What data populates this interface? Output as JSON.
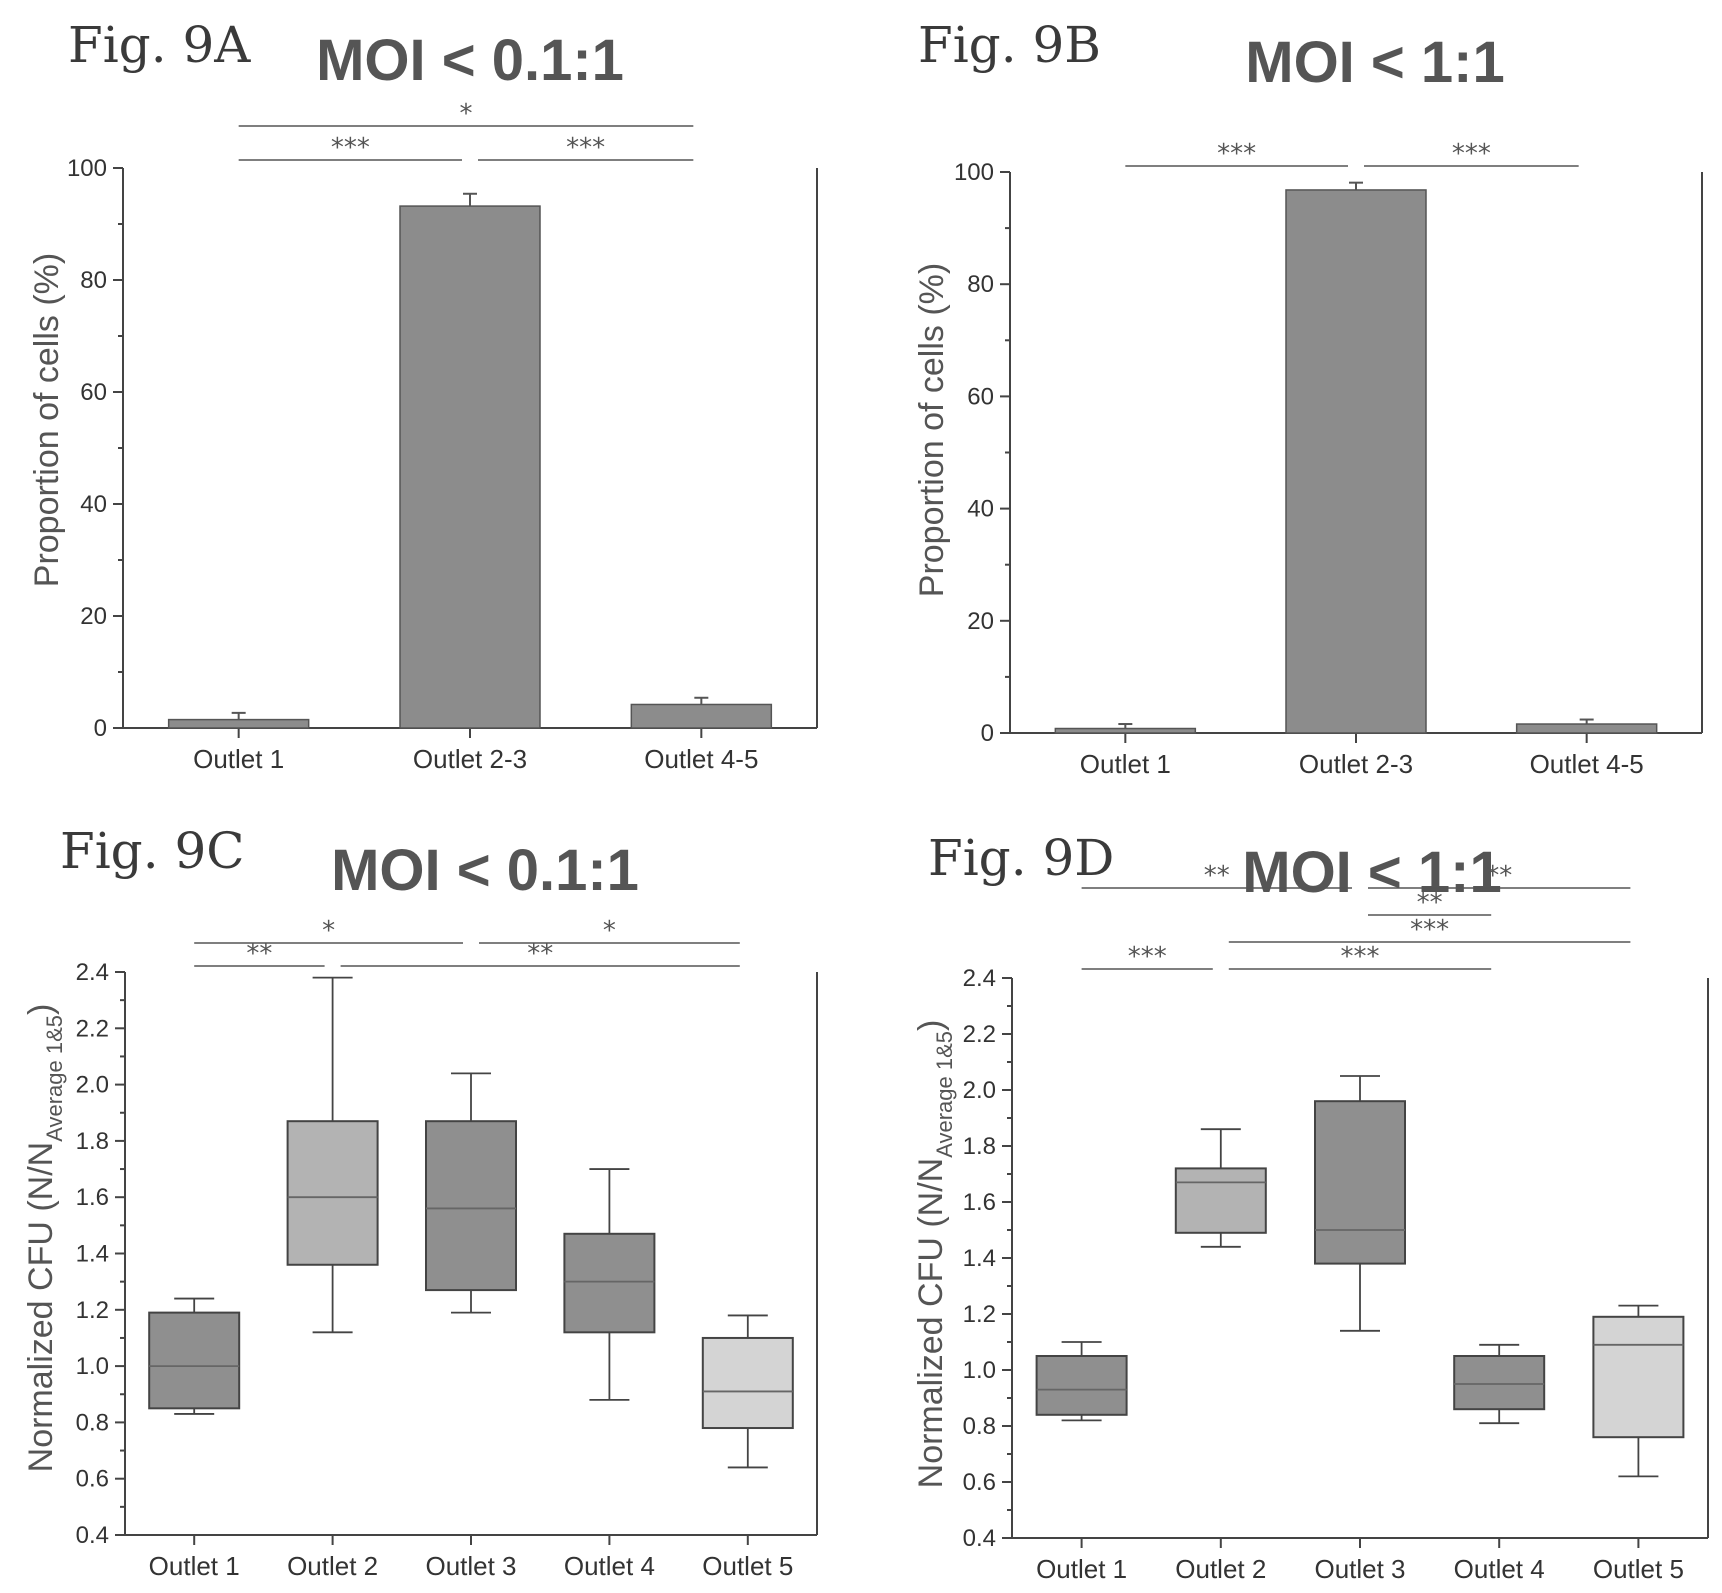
{
  "chart_data": [
    {
      "type": "bar",
      "figure_label": "Fig. 9A",
      "title": "MOI < 0.1:1",
      "ylabel": "Proportion of cells (%)",
      "ylim": [
        0,
        100
      ],
      "yticks": [
        0,
        20,
        40,
        60,
        80,
        100
      ],
      "categories": [
        "Outlet 1",
        "Outlet 2-3",
        "Outlet 4-5"
      ],
      "values": [
        1.5,
        93.2,
        4.2
      ],
      "errors": [
        1.2,
        2.2,
        1.2
      ],
      "significance": [
        {
          "from": 0,
          "to": 2,
          "label": "*",
          "level": 2
        },
        {
          "from": 0,
          "to": 1,
          "label": "***",
          "level": 1
        },
        {
          "from": 1,
          "to": 2,
          "label": "***",
          "level": 1
        }
      ]
    },
    {
      "type": "bar",
      "figure_label": "Fig. 9B",
      "title": "MOI < 1:1",
      "ylabel": "Proportion of cells (%)",
      "ylim": [
        0,
        100
      ],
      "yticks": [
        0,
        20,
        40,
        60,
        80,
        100
      ],
      "categories": [
        "Outlet 1",
        "Outlet 2-3",
        "Outlet 4-5"
      ],
      "values": [
        0.8,
        96.8,
        1.6
      ],
      "errors": [
        0.8,
        1.3,
        0.8
      ],
      "significance": [
        {
          "from": 0,
          "to": 1,
          "label": "***",
          "level": 1
        },
        {
          "from": 1,
          "to": 2,
          "label": "***",
          "level": 1
        }
      ]
    },
    {
      "type": "box",
      "figure_label": "Fig. 9C",
      "title": "MOI < 0.1:1",
      "ylabel_main": "Normalized CFU (N/N",
      "ylabel_sub": "Average 1&5",
      "ylabel_end": ")",
      "ylim": [
        0.4,
        2.4
      ],
      "yticks": [
        "0.4",
        "0.6",
        "0.8",
        "1.0",
        "1.2",
        "1.4",
        "1.6",
        "1.8",
        "2.0",
        "2.2",
        "2.4"
      ],
      "categories": [
        "Outlet 1",
        "Outlet 2",
        "Outlet 3",
        "Outlet 4",
        "Outlet 5"
      ],
      "boxes": [
        {
          "min": 0.83,
          "q1": 0.85,
          "median": 1.0,
          "q3": 1.19,
          "max": 1.24,
          "shade": "dark"
        },
        {
          "min": 1.12,
          "q1": 1.36,
          "median": 1.6,
          "q3": 1.87,
          "max": 2.38,
          "shade": "mid"
        },
        {
          "min": 1.19,
          "q1": 1.27,
          "median": 1.56,
          "q3": 1.87,
          "max": 2.04,
          "shade": "dark"
        },
        {
          "min": 0.88,
          "q1": 1.12,
          "median": 1.3,
          "q3": 1.47,
          "max": 1.7,
          "shade": "dark"
        },
        {
          "min": 0.64,
          "q1": 0.78,
          "median": 0.91,
          "q3": 1.1,
          "max": 1.18,
          "shade": "light"
        }
      ],
      "significance": [
        {
          "from": 0,
          "to": 2,
          "label": "*",
          "level": 2
        },
        {
          "from": 2,
          "to": 4,
          "label": "*",
          "level": 2
        },
        {
          "from": 0,
          "to": 1,
          "label": "**",
          "level": 1
        },
        {
          "from": 1,
          "to": 4,
          "label": "**",
          "level": 1
        }
      ]
    },
    {
      "type": "box",
      "figure_label": "Fig. 9D",
      "title": "MOI < 1:1",
      "ylabel_main": "Normalized CFU (N/N",
      "ylabel_sub": "Average 1&5",
      "ylabel_end": ")",
      "ylim": [
        0.4,
        2.4
      ],
      "yticks": [
        "0.4",
        "0.6",
        "0.8",
        "1.0",
        "1.2",
        "1.4",
        "1.6",
        "1.8",
        "2.0",
        "2.2",
        "2.4"
      ],
      "categories": [
        "Outlet 1",
        "Outlet 2",
        "Outlet 3",
        "Outlet 4",
        "Outlet 5"
      ],
      "boxes": [
        {
          "min": 0.82,
          "q1": 0.84,
          "median": 0.93,
          "q3": 1.05,
          "max": 1.1,
          "shade": "dark"
        },
        {
          "min": 1.44,
          "q1": 1.49,
          "median": 1.67,
          "q3": 1.72,
          "max": 1.86,
          "shade": "mid"
        },
        {
          "min": 1.14,
          "q1": 1.38,
          "median": 1.5,
          "q3": 1.96,
          "max": 2.05,
          "shade": "dark"
        },
        {
          "min": 0.81,
          "q1": 0.86,
          "median": 0.95,
          "q3": 1.05,
          "max": 1.09,
          "shade": "dark"
        },
        {
          "min": 0.62,
          "q1": 0.76,
          "median": 1.09,
          "q3": 1.19,
          "max": 1.23,
          "shade": "light"
        }
      ],
      "significance": [
        {
          "from": 0,
          "to": 2,
          "label": "**",
          "level": 4
        },
        {
          "from": 2,
          "to": 4,
          "label": "**",
          "level": 4
        },
        {
          "from": 2,
          "to": 3,
          "label": "**",
          "level": 3
        },
        {
          "from": 1,
          "to": 4,
          "label": "***",
          "level": 2
        },
        {
          "from": 0,
          "to": 1,
          "label": "***",
          "level": 1
        },
        {
          "from": 1,
          "to": 3,
          "label": "***",
          "level": 1
        }
      ]
    }
  ]
}
